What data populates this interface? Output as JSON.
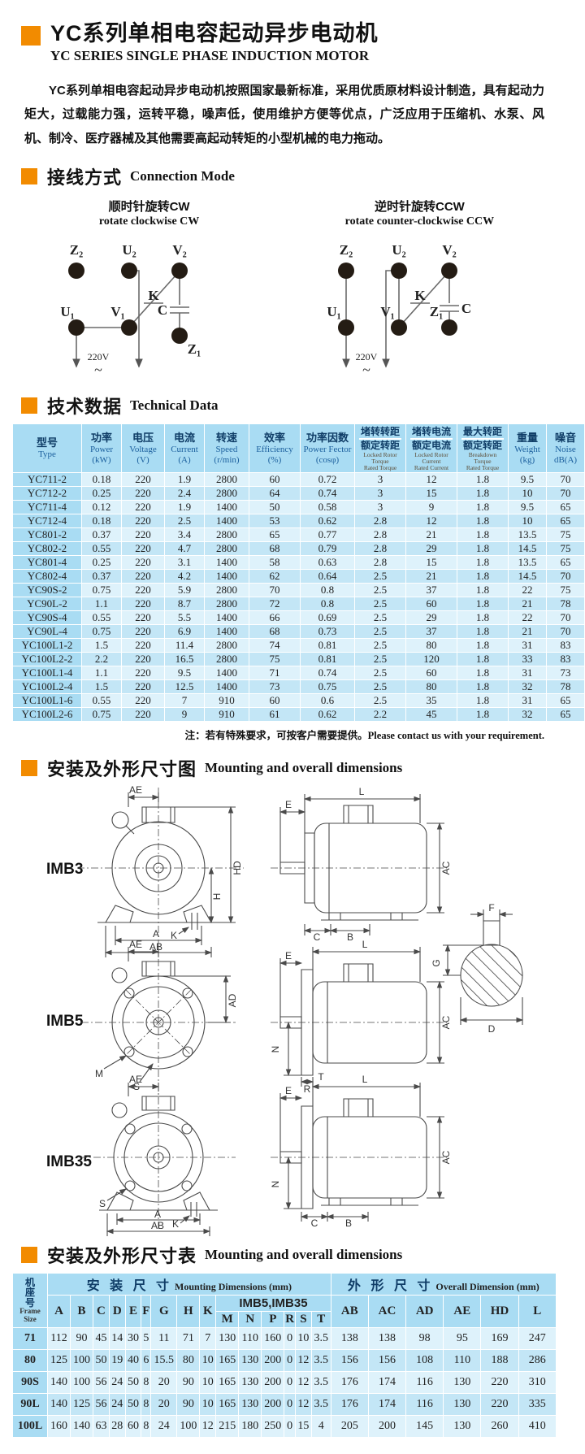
{
  "page": {
    "title_cn": "YC系列单相电容起动异步电动机",
    "title_en": "YC SERIES SINGLE PHASE INDUCTION MOTOR",
    "intro": "YC系列单相电容起动异步电动机按照国家最新标准，采用优质原材料设计制造，具有起动力矩大，过载能力强，运转平稳，噪声低，使用维护方便等优点，广泛应用于压缩机、水泵、风机、制冷、医疗器械及其他需要高起动转矩的小型机械的电力拖动。"
  },
  "connection": {
    "heading_cn": "接线方式",
    "heading_en": "Connection Mode",
    "cw_title_cn": "顺时针旋转CW",
    "cw_title_en": "rotate clockwise CW",
    "ccw_title_cn": "逆时针旋转CCW",
    "ccw_title_en": "rotate counter-clockwise CCW",
    "terminals": [
      "Z₂",
      "U₂",
      "V₂",
      "U₁",
      "V₁",
      "Z₁"
    ],
    "switch_label": "K",
    "cap_label": "C",
    "voltage": "220V",
    "tilde": "~"
  },
  "technical": {
    "heading_cn": "技术数据",
    "heading_en": "Technical Data",
    "note_cn": "注：若有特殊要求，可按客户需要提供。",
    "note_en": "Please contact us with your requirement.",
    "columns": [
      {
        "cn": "型号",
        "en": "Type",
        "unit": ""
      },
      {
        "cn": "功率",
        "en": "Power",
        "unit": "(kW)"
      },
      {
        "cn": "电压",
        "en": "Voltage",
        "unit": "(V)"
      },
      {
        "cn": "电流",
        "en": "Current",
        "unit": "(A)"
      },
      {
        "cn": "转速",
        "en": "Speed",
        "unit": "(r/min)"
      },
      {
        "cn": "效率",
        "en": "Efficiency",
        "unit": "(%)"
      },
      {
        "cn": "功率因数",
        "en": "Power Fector",
        "unit": "(cosφ)"
      },
      {
        "ratio": true,
        "cn_top": "堵转转距",
        "cn_bottom": "额定转距",
        "en_lines": [
          "Locked Rotor",
          "Torque",
          "Rated Torque"
        ]
      },
      {
        "ratio": true,
        "cn_top": "堵转电流",
        "cn_bottom": "额定电流",
        "en_lines": [
          "Locked Rotor",
          "Current",
          "Rated Current"
        ]
      },
      {
        "ratio": true,
        "cn_top": "最大转距",
        "cn_bottom": "额定转距",
        "en_lines": [
          "Breakdown",
          "Torque",
          "Rated Torque"
        ]
      },
      {
        "cn": "重量",
        "en": "Weight",
        "unit": "(kg)"
      },
      {
        "cn": "噪音",
        "en": "Noise",
        "unit": "dB(A)"
      }
    ],
    "rows": [
      [
        "YC711-2",
        "0.18",
        "220",
        "1.9",
        "2800",
        "60",
        "0.72",
        "3",
        "12",
        "1.8",
        "9.5",
        "70"
      ],
      [
        "YC712-2",
        "0.25",
        "220",
        "2.4",
        "2800",
        "64",
        "0.74",
        "3",
        "15",
        "1.8",
        "10",
        "70"
      ],
      [
        "YC711-4",
        "0.12",
        "220",
        "1.9",
        "1400",
        "50",
        "0.58",
        "3",
        "9",
        "1.8",
        "9.5",
        "65"
      ],
      [
        "YC712-4",
        "0.18",
        "220",
        "2.5",
        "1400",
        "53",
        "0.62",
        "2.8",
        "12",
        "1.8",
        "10",
        "65"
      ],
      [
        "YC801-2",
        "0.37",
        "220",
        "3.4",
        "2800",
        "65",
        "0.77",
        "2.8",
        "21",
        "1.8",
        "13.5",
        "75"
      ],
      [
        "YC802-2",
        "0.55",
        "220",
        "4.7",
        "2800",
        "68",
        "0.79",
        "2.8",
        "29",
        "1.8",
        "14.5",
        "75"
      ],
      [
        "YC801-4",
        "0.25",
        "220",
        "3.1",
        "1400",
        "58",
        "0.63",
        "2.8",
        "15",
        "1.8",
        "13.5",
        "65"
      ],
      [
        "YC802-4",
        "0.37",
        "220",
        "4.2",
        "1400",
        "62",
        "0.64",
        "2.5",
        "21",
        "1.8",
        "14.5",
        "70"
      ],
      [
        "YC90S-2",
        "0.75",
        "220",
        "5.9",
        "2800",
        "70",
        "0.8",
        "2.5",
        "37",
        "1.8",
        "22",
        "75"
      ],
      [
        "YC90L-2",
        "1.1",
        "220",
        "8.7",
        "2800",
        "72",
        "0.8",
        "2.5",
        "60",
        "1.8",
        "21",
        "78"
      ],
      [
        "YC90S-4",
        "0.55",
        "220",
        "5.5",
        "1400",
        "66",
        "0.69",
        "2.5",
        "29",
        "1.8",
        "22",
        "70"
      ],
      [
        "YC90L-4",
        "0.75",
        "220",
        "6.9",
        "1400",
        "68",
        "0.73",
        "2.5",
        "37",
        "1.8",
        "21",
        "70"
      ],
      [
        "YC100L1-2",
        "1.5",
        "220",
        "11.4",
        "2800",
        "74",
        "0.81",
        "2.5",
        "80",
        "1.8",
        "31",
        "83"
      ],
      [
        "YC100L2-2",
        "2.2",
        "220",
        "16.5",
        "2800",
        "75",
        "0.81",
        "2.5",
        "120",
        "1.8",
        "33",
        "83"
      ],
      [
        "YC100L1-4",
        "1.1",
        "220",
        "9.5",
        "1400",
        "71",
        "0.74",
        "2.5",
        "60",
        "1.8",
        "31",
        "73"
      ],
      [
        "YC100L2-4",
        "1.5",
        "220",
        "12.5",
        "1400",
        "73",
        "0.75",
        "2.5",
        "80",
        "1.8",
        "32",
        "78"
      ],
      [
        "YC100L1-6",
        "0.55",
        "220",
        "7",
        "910",
        "60",
        "0.6",
        "2.5",
        "35",
        "1.8",
        "31",
        "65"
      ],
      [
        "YC100L2-6",
        "0.75",
        "220",
        "9",
        "910",
        "61",
        "0.62",
        "2.2",
        "45",
        "1.8",
        "32",
        "65"
      ]
    ]
  },
  "figures": {
    "heading_cn": "安装及外形尺寸图",
    "heading_en": "Mounting and overall dimensions",
    "items": [
      "IMB3",
      "IMB5",
      "IMB35"
    ],
    "dims": {
      "imb3_front": [
        "AE",
        "HD",
        "H",
        "K",
        "A",
        "AB"
      ],
      "imb3_side": [
        "L",
        "E",
        "AC",
        "C",
        "B"
      ],
      "shaft": [
        "F",
        "G",
        "D"
      ],
      "imb5_front": [
        "AE",
        "AD",
        "M",
        "S"
      ],
      "imb5_side": [
        "L",
        "E",
        "N",
        "AC",
        "T",
        "R"
      ],
      "imb35_front": [
        "AE",
        "A",
        "AB",
        "K",
        "S"
      ],
      "imb35_side": [
        "L",
        "E",
        "N",
        "AC",
        "C",
        "B"
      ]
    }
  },
  "mounting_table": {
    "heading_cn": "安装及外形尺寸表",
    "heading_en": "Mounting and overall dimensions",
    "frame_cn": "机座号",
    "frame_en": "Frame Size",
    "group1_cn": "安 装 尺 寸",
    "group1_en": "Mounting Dimensions (mm)",
    "group2_cn": "外 形 尺 寸",
    "group2_en": "Overall Dimension (mm)",
    "imb_group": "IMB5,IMB35",
    "cols_a": [
      "A",
      "B",
      "C",
      "D",
      "E",
      "F",
      "G",
      "H",
      "K"
    ],
    "cols_m": [
      "M",
      "N",
      "P",
      "R",
      "S",
      "T"
    ],
    "cols_o": [
      "AB",
      "AC",
      "AD",
      "AE",
      "HD",
      "L"
    ],
    "rows": [
      [
        "71",
        "112",
        "90",
        "45",
        "14",
        "30",
        "5",
        "11",
        "71",
        "7",
        "130",
        "110",
        "160",
        "0",
        "10",
        "3.5",
        "138",
        "138",
        "98",
        "95",
        "169",
        "247"
      ],
      [
        "80",
        "125",
        "100",
        "50",
        "19",
        "40",
        "6",
        "15.5",
        "80",
        "10",
        "165",
        "130",
        "200",
        "0",
        "12",
        "3.5",
        "156",
        "156",
        "108",
        "110",
        "188",
        "286"
      ],
      [
        "90S",
        "140",
        "100",
        "56",
        "24",
        "50",
        "8",
        "20",
        "90",
        "10",
        "165",
        "130",
        "200",
        "0",
        "12",
        "3.5",
        "176",
        "174",
        "116",
        "130",
        "220",
        "310"
      ],
      [
        "90L",
        "140",
        "125",
        "56",
        "24",
        "50",
        "8",
        "20",
        "90",
        "10",
        "165",
        "130",
        "200",
        "0",
        "12",
        "3.5",
        "176",
        "174",
        "116",
        "130",
        "220",
        "335"
      ],
      [
        "100L",
        "160",
        "140",
        "63",
        "28",
        "60",
        "8",
        "24",
        "100",
        "12",
        "215",
        "180",
        "250",
        "0",
        "15",
        "4",
        "205",
        "200",
        "145",
        "130",
        "260",
        "410"
      ]
    ]
  }
}
